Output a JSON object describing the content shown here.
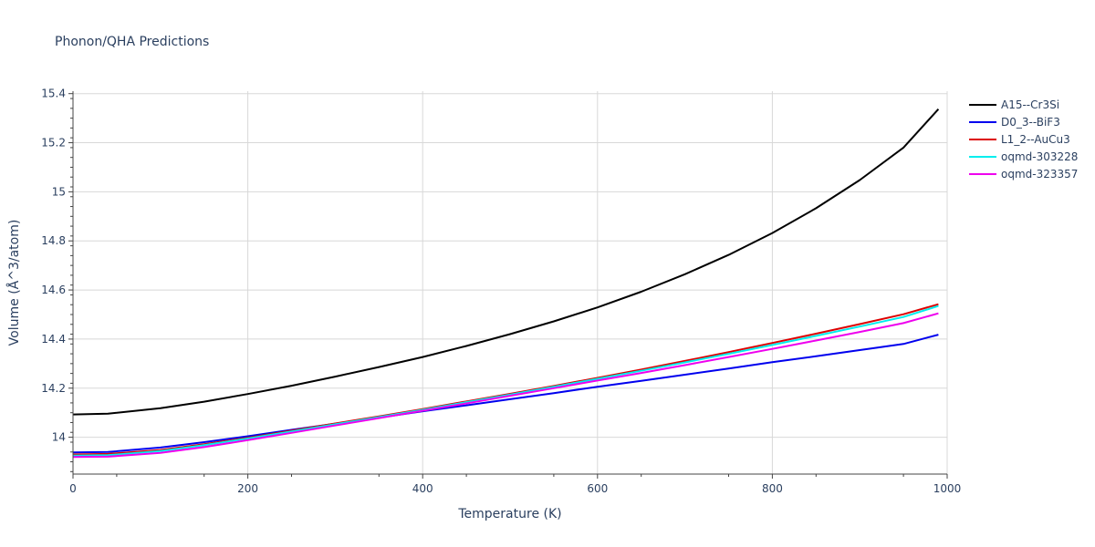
{
  "chart_data": {
    "type": "line",
    "title": "Phonon/QHA Predictions",
    "xlabel": "Temperature (K)",
    "ylabel": "Volume (Å^3/atom)",
    "xlim": [
      0,
      1000
    ],
    "ylim": [
      13.85,
      15.41
    ],
    "xticks": [
      0,
      200,
      400,
      600,
      800,
      1000
    ],
    "xtick_labels": [
      "0",
      "200",
      "400",
      "600",
      "800",
      "1000"
    ],
    "yticks": [
      14,
      14.2,
      14.4,
      14.6,
      14.8,
      15,
      15.2,
      15.4
    ],
    "ytick_labels": [
      "14",
      "14.2",
      "14.4",
      "14.6",
      "14.8",
      "15",
      "15.2",
      "15.4"
    ],
    "grid": true,
    "legend_position": "top-right, outside plot",
    "series": [
      {
        "name": "A15--Cr3Si",
        "color": "#000000",
        "x": [
          0,
          40,
          100,
          150,
          200,
          250,
          300,
          350,
          400,
          450,
          500,
          550,
          600,
          650,
          700,
          750,
          800,
          850,
          900,
          950,
          990
        ],
        "y": [
          14.093,
          14.096,
          14.118,
          14.145,
          14.176,
          14.21,
          14.247,
          14.286,
          14.327,
          14.372,
          14.42,
          14.472,
          14.529,
          14.593,
          14.664,
          14.743,
          14.832,
          14.933,
          15.048,
          15.18,
          15.337
        ]
      },
      {
        "name": "D0_3--BiF3",
        "color": "#0000ee",
        "x": [
          0,
          40,
          100,
          150,
          200,
          250,
          300,
          350,
          400,
          450,
          500,
          550,
          600,
          650,
          700,
          750,
          800,
          850,
          900,
          950,
          990
        ],
        "y": [
          13.938,
          13.94,
          13.958,
          13.98,
          14.004,
          14.03,
          14.055,
          14.08,
          14.106,
          14.13,
          14.155,
          14.18,
          14.206,
          14.23,
          14.255,
          14.28,
          14.306,
          14.33,
          14.355,
          14.38,
          14.418
        ]
      },
      {
        "name": "L1_2--AuCu3",
        "color": "#dd0000",
        "x": [
          0,
          40,
          100,
          150,
          200,
          250,
          300,
          350,
          400,
          450,
          500,
          550,
          600,
          650,
          700,
          750,
          800,
          850,
          900,
          950,
          990
        ],
        "y": [
          13.93,
          13.932,
          13.948,
          13.972,
          13.998,
          14.027,
          14.056,
          14.085,
          14.115,
          14.146,
          14.177,
          14.209,
          14.242,
          14.276,
          14.311,
          14.347,
          14.384,
          14.422,
          14.461,
          14.501,
          14.542
        ]
      },
      {
        "name": "oqmd-303228",
        "color": "#00eeee",
        "x": [
          0,
          40,
          100,
          150,
          200,
          250,
          300,
          350,
          400,
          450,
          500,
          550,
          600,
          650,
          700,
          750,
          800,
          850,
          900,
          950,
          990
        ],
        "y": [
          13.925,
          13.927,
          13.944,
          13.968,
          13.995,
          14.024,
          14.053,
          14.082,
          14.112,
          14.143,
          14.174,
          14.206,
          14.238,
          14.271,
          14.305,
          14.34,
          14.376,
          14.413,
          14.451,
          14.49,
          14.535
        ]
      },
      {
        "name": "oqmd-323357",
        "color": "#ee00ee",
        "x": [
          0,
          40,
          100,
          150,
          200,
          250,
          300,
          350,
          400,
          450,
          500,
          550,
          600,
          650,
          700,
          750,
          800,
          850,
          900,
          950,
          990
        ],
        "y": [
          13.92,
          13.921,
          13.936,
          13.96,
          13.988,
          14.018,
          14.048,
          14.078,
          14.108,
          14.138,
          14.169,
          14.2,
          14.231,
          14.262,
          14.294,
          14.327,
          14.36,
          14.394,
          14.429,
          14.465,
          14.505
        ]
      }
    ]
  }
}
